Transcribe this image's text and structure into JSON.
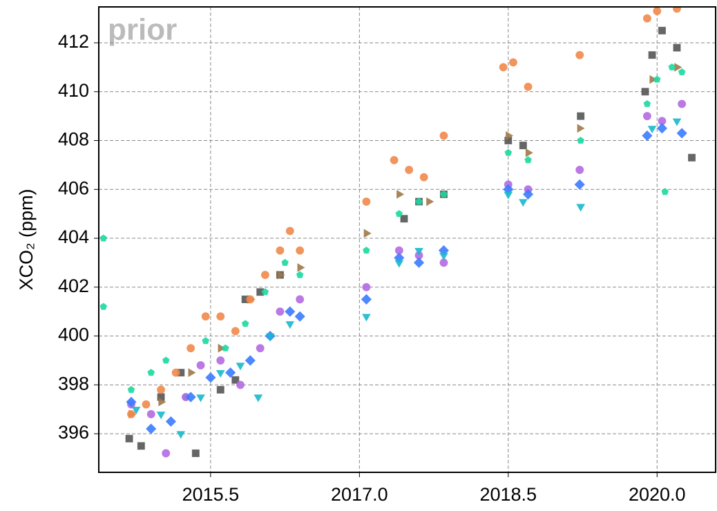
{
  "chart_data": {
    "type": "scatter",
    "annotation": "prior",
    "ylabel": "XCO₂ (ppm)",
    "xlim": [
      2014.373,
      2020.59
    ],
    "ylim": [
      394.42,
      413.47
    ],
    "xticks": [
      2015.5,
      {
        "value": 2017,
        "label": "2017.0"
      },
      2018.5,
      {
        "value": 2020,
        "label": "2020.0"
      }
    ],
    "yticks": [
      396,
      398,
      400,
      402,
      404,
      406,
      408,
      410,
      412
    ],
    "grid": true,
    "series": [
      {
        "color": "#555555",
        "marker": "square",
        "x": [
          2014.68,
          2014.8,
          2015.0,
          2015.2,
          2015.35,
          2015.6,
          2015.75,
          2015.85,
          2016.0,
          2016.2,
          2017.45,
          2017.6,
          2017.85,
          2018.5,
          2018.65,
          2019.23,
          2019.88,
          2019.95,
          2020.05,
          2020.2,
          2020.35
        ],
        "values": [
          395.8,
          395.5,
          397.5,
          398.5,
          395.2,
          397.8,
          398.2,
          401.5,
          401.8,
          402.5,
          404.8,
          405.5,
          405.8,
          408.0,
          407.8,
          409.0,
          410.0,
          411.5,
          412.5,
          411.8,
          407.3
        ]
      },
      {
        "color": "#a0784a",
        "marker": "triangle-right",
        "x": [
          2014.7,
          2015.0,
          2015.3,
          2015.6,
          2015.9,
          2016.2,
          2016.4,
          2017.07,
          2017.4,
          2017.7,
          2018.5,
          2018.7,
          2019.22,
          2019.95,
          2020.2
        ],
        "values": [
          396.8,
          397.3,
          398.5,
          399.5,
          401.5,
          402.5,
          402.8,
          404.2,
          405.8,
          405.5,
          408.2,
          407.5,
          408.5,
          410.5,
          411.0
        ]
      },
      {
        "color": "#f08a4b",
        "marker": "circle",
        "x": [
          2014.7,
          2014.85,
          2015.0,
          2015.15,
          2015.3,
          2015.45,
          2015.6,
          2015.75,
          2015.9,
          2016.05,
          2016.2,
          2016.3,
          2016.4,
          2017.07,
          2017.35,
          2017.5,
          2017.65,
          2017.85,
          2018.45,
          2018.55,
          2018.7,
          2019.22,
          2019.9,
          2020.0,
          2020.2
        ],
        "values": [
          396.8,
          397.2,
          397.8,
          398.5,
          399.5,
          400.8,
          400.8,
          400.2,
          401.5,
          402.5,
          403.5,
          404.3,
          403.5,
          405.5,
          407.2,
          406.8,
          406.5,
          408.2,
          411.0,
          411.2,
          410.2,
          411.5,
          413.0,
          413.3,
          413.4
        ]
      },
      {
        "color": "#19d9a0",
        "marker": "pentagon",
        "x": [
          2014.42,
          2014.42,
          2014.7,
          2014.9,
          2015.05,
          2015.25,
          2015.45,
          2015.65,
          2015.85,
          2016.05,
          2016.25,
          2016.4,
          2017.07,
          2017.4,
          2017.6,
          2017.85,
          2018.5,
          2018.7,
          2019.23,
          2019.9,
          2020.0,
          2020.15,
          2020.25,
          2020.08
        ],
        "values": [
          404.0,
          401.2,
          397.8,
          398.5,
          399.0,
          397.5,
          399.8,
          399.5,
          400.5,
          401.8,
          403.0,
          402.5,
          403.5,
          405.0,
          405.5,
          405.8,
          407.5,
          407.2,
          408.0,
          409.5,
          410.5,
          411.0,
          410.8,
          405.9
        ]
      },
      {
        "color": "#b36ae2",
        "marker": "circle",
        "x": [
          2014.7,
          2014.9,
          2015.05,
          2015.25,
          2015.4,
          2015.6,
          2015.8,
          2016.0,
          2016.2,
          2016.4,
          2017.07,
          2017.4,
          2017.6,
          2017.85,
          2018.5,
          2018.7,
          2019.22,
          2019.9,
          2020.05,
          2020.25
        ],
        "values": [
          397.2,
          396.8,
          395.2,
          397.5,
          398.8,
          399.0,
          398.0,
          399.5,
          401.0,
          401.5,
          402.0,
          403.5,
          403.3,
          403.0,
          406.2,
          406.0,
          406.8,
          409.0,
          408.8,
          409.5
        ]
      },
      {
        "color": "#3a7bff",
        "marker": "diamond",
        "x": [
          2014.7,
          2014.9,
          2015.1,
          2015.3,
          2015.5,
          2015.7,
          2015.9,
          2016.1,
          2016.3,
          2016.4,
          2017.07,
          2017.4,
          2017.6,
          2017.85,
          2018.5,
          2018.7,
          2019.22,
          2019.9,
          2020.05,
          2020.25
        ],
        "values": [
          397.3,
          396.2,
          396.5,
          397.5,
          398.3,
          398.5,
          399.0,
          400.0,
          401.0,
          400.8,
          401.5,
          403.2,
          403.0,
          403.5,
          406.0,
          405.8,
          406.2,
          408.2,
          408.5,
          408.3
        ]
      },
      {
        "color": "#18b8cc",
        "marker": "triangle-down",
        "x": [
          2014.75,
          2015.0,
          2015.2,
          2015.4,
          2015.6,
          2015.8,
          2015.98,
          2016.1,
          2016.3,
          2017.07,
          2017.4,
          2017.6,
          2017.85,
          2018.5,
          2018.65,
          2019.23,
          2019.95,
          2020.2
        ],
        "values": [
          397.0,
          396.8,
          396.0,
          397.5,
          398.5,
          398.8,
          397.5,
          400.0,
          400.5,
          400.8,
          403.0,
          403.5,
          403.3,
          405.8,
          405.5,
          405.3,
          408.5,
          408.8
        ]
      }
    ]
  }
}
